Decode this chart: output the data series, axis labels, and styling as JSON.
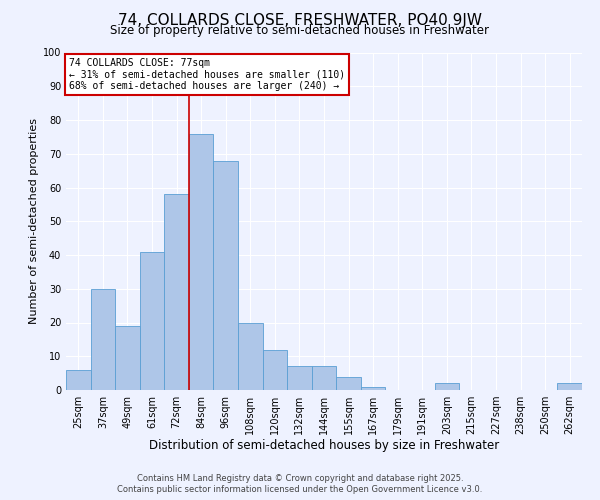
{
  "title": "74, COLLARDS CLOSE, FRESHWATER, PO40 9JW",
  "subtitle": "Size of property relative to semi-detached houses in Freshwater",
  "xlabel": "Distribution of semi-detached houses by size in Freshwater",
  "ylabel": "Number of semi-detached properties",
  "bar_labels": [
    "25sqm",
    "37sqm",
    "49sqm",
    "61sqm",
    "72sqm",
    "84sqm",
    "96sqm",
    "108sqm",
    "120sqm",
    "132sqm",
    "144sqm",
    "155sqm",
    "167sqm",
    "179sqm",
    "191sqm",
    "203sqm",
    "215sqm",
    "227sqm",
    "238sqm",
    "250sqm",
    "262sqm"
  ],
  "bar_values": [
    6,
    30,
    19,
    41,
    58,
    76,
    68,
    20,
    12,
    7,
    7,
    4,
    1,
    0,
    0,
    2,
    0,
    0,
    0,
    0,
    2
  ],
  "bar_color": "#aec6e8",
  "bar_edge_color": "#5a9fd4",
  "vline_index": 4,
  "annotation_title": "74 COLLARDS CLOSE: 77sqm",
  "annotation_line1": "← 31% of semi-detached houses are smaller (110)",
  "annotation_line2": "68% of semi-detached houses are larger (240) →",
  "annotation_box_color": "#ffffff",
  "annotation_box_edge": "#cc0000",
  "vline_color": "#cc0000",
  "ylim": [
    0,
    100
  ],
  "yticks": [
    0,
    10,
    20,
    30,
    40,
    50,
    60,
    70,
    80,
    90,
    100
  ],
  "bg_color": "#eef2ff",
  "grid_color": "#ffffff",
  "footer_line1": "Contains HM Land Registry data © Crown copyright and database right 2025.",
  "footer_line2": "Contains public sector information licensed under the Open Government Licence v3.0.",
  "title_fontsize": 11,
  "subtitle_fontsize": 8.5,
  "xlabel_fontsize": 8.5,
  "ylabel_fontsize": 8,
  "tick_fontsize": 7,
  "annotation_fontsize": 7,
  "footer_fontsize": 6
}
